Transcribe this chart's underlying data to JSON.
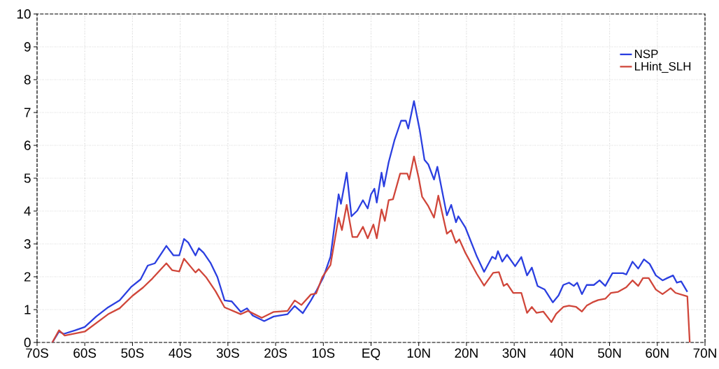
{
  "chart_data": {
    "type": "line",
    "xlim": [
      -70,
      70
    ],
    "xticks": [
      {
        "value": -70,
        "label": "70S"
      },
      {
        "value": -60,
        "label": "60S"
      },
      {
        "value": -50,
        "label": "50S"
      },
      {
        "value": -40,
        "label": "40S"
      },
      {
        "value": -30,
        "label": "30S"
      },
      {
        "value": -20,
        "label": "20S"
      },
      {
        "value": -10,
        "label": "10S"
      },
      {
        "value": 0,
        "label": "EQ"
      },
      {
        "value": 10,
        "label": "10N"
      },
      {
        "value": 20,
        "label": "20N"
      },
      {
        "value": 30,
        "label": "30N"
      },
      {
        "value": 40,
        "label": "40N"
      },
      {
        "value": 50,
        "label": "50N"
      },
      {
        "value": 60,
        "label": "60N"
      },
      {
        "value": 70,
        "label": "70N"
      }
    ],
    "ylim": [
      0,
      10
    ],
    "yticks": [
      0,
      1,
      2,
      3,
      4,
      5,
      6,
      7,
      8,
      9,
      10
    ],
    "grid": true,
    "legend": "top right",
    "marker": "none",
    "line_style": "solid",
    "series": [
      {
        "name": "NSP",
        "color": "#2b3fe0",
        "x": [
          -66.8,
          -65.4,
          -64.4,
          -62,
          -60,
          -57.6,
          -55.1,
          -52.7,
          -50.2,
          -48.3,
          -46.8,
          -45.3,
          -42.9,
          -41.4,
          -40.2,
          -39.2,
          -38.3,
          -36.8,
          -36.1,
          -35.1,
          -33.6,
          -32.2,
          -30.7,
          -29.2,
          -27.3,
          -26.0,
          -24.8,
          -22.4,
          -20.4,
          -17.5,
          -16.0,
          -14.3,
          -12.6,
          -11.5,
          -10,
          -8.5,
          -6.8,
          -6.3,
          -5.1,
          -4.1,
          -2.9,
          -1.7,
          -0.7,
          0,
          0.7,
          1.2,
          2.2,
          2.7,
          3.7,
          4.9,
          6.3,
          7.3,
          7.8,
          9.0,
          10.2,
          11.2,
          12.0,
          13.2,
          13.9,
          15.9,
          16.8,
          17.8,
          18.3,
          19.8,
          22.2,
          23.7,
          25.4,
          26.1,
          26.6,
          27.5,
          28.5,
          30.2,
          31.5,
          32.7,
          33.7,
          34.9,
          36.4,
          38.1,
          39.3,
          40.3,
          41.5,
          42.5,
          43.2,
          44.2,
          45.2,
          46.7,
          47.9,
          49.1,
          50.6,
          52.8,
          53.5,
          54.8,
          56.0,
          57.2,
          58.4,
          59.7,
          61.1,
          62.1,
          63.3,
          64.1,
          65.0,
          66.3
        ],
        "values": [
          0,
          0.33,
          0.26,
          0.37,
          0.47,
          0.79,
          1.07,
          1.28,
          1.7,
          1.92,
          2.34,
          2.41,
          2.94,
          2.65,
          2.65,
          3.15,
          3.04,
          2.65,
          2.87,
          2.73,
          2.41,
          1.99,
          1.28,
          1.25,
          0.93,
          1.04,
          0.82,
          0.65,
          0.79,
          0.86,
          1.11,
          0.89,
          1.28,
          1.56,
          1.98,
          2.61,
          4.51,
          4.22,
          5.17,
          3.84,
          4.01,
          4.33,
          4.08,
          4.51,
          4.68,
          4.26,
          5.17,
          4.75,
          5.49,
          6.15,
          6.75,
          6.75,
          6.51,
          7.35,
          6.47,
          5.56,
          5.42,
          4.96,
          5.35,
          3.87,
          4.19,
          3.66,
          3.84,
          3.49,
          2.61,
          2.15,
          2.61,
          2.54,
          2.78,
          2.46,
          2.67,
          2.32,
          2.6,
          2.04,
          2.28,
          1.72,
          1.61,
          1.22,
          1.43,
          1.75,
          1.82,
          1.72,
          1.82,
          1.47,
          1.75,
          1.75,
          1.89,
          1.72,
          2.11,
          2.11,
          2.07,
          2.46,
          2.25,
          2.53,
          2.39,
          2.04,
          1.89,
          1.96,
          2.04,
          1.82,
          1.86,
          1.54
        ]
      },
      {
        "name": "LHint_SLH",
        "color": "#d0463a",
        "x": [
          -66.8,
          -65.4,
          -64.2,
          -60,
          -55.1,
          -52.7,
          -50,
          -47.8,
          -45.8,
          -42.9,
          -41.7,
          -40.2,
          -39.2,
          -36.8,
          -36.1,
          -34.6,
          -32.6,
          -30.7,
          -27.3,
          -25.8,
          -22.9,
          -20.4,
          -17.5,
          -16.0,
          -14.6,
          -12.6,
          -11.5,
          -10.2,
          -8.5,
          -6.8,
          -6.1,
          -5.1,
          -3.9,
          -2.9,
          -1.7,
          -0.7,
          0.5,
          1.2,
          2.2,
          2.9,
          3.7,
          4.6,
          6.1,
          7.6,
          8.0,
          9.0,
          10.0,
          10.7,
          12.0,
          13.2,
          14.1,
          15.9,
          16.8,
          17.8,
          18.5,
          19.8,
          22.2,
          23.7,
          25.6,
          26.8,
          27.8,
          28.5,
          29.8,
          31.5,
          32.7,
          33.7,
          34.7,
          36.1,
          37.8,
          38.8,
          40.3,
          41.5,
          43.0,
          44.2,
          45.2,
          46.4,
          47.6,
          49.1,
          50.3,
          51.8,
          53.5,
          54.8,
          56.0,
          57.0,
          58.2,
          59.7,
          61.1,
          62.8,
          63.8,
          66.3,
          66.8
        ],
        "values": [
          0,
          0.37,
          0.21,
          0.33,
          0.86,
          1.04,
          1.42,
          1.67,
          1.95,
          2.41,
          2.2,
          2.16,
          2.55,
          2.13,
          2.23,
          1.99,
          1.56,
          1.07,
          0.86,
          0.96,
          0.75,
          0.93,
          0.96,
          1.28,
          1.14,
          1.46,
          1.49,
          1.99,
          2.36,
          3.8,
          3.42,
          4.19,
          3.21,
          3.21,
          3.52,
          3.17,
          3.59,
          3.17,
          4.05,
          3.7,
          4.33,
          4.36,
          5.14,
          5.14,
          4.96,
          5.66,
          5.0,
          4.44,
          4.15,
          3.8,
          4.47,
          3.31,
          3.42,
          3.03,
          3.14,
          2.72,
          2.08,
          1.73,
          2.12,
          2.14,
          1.72,
          1.79,
          1.51,
          1.51,
          0.9,
          1.08,
          0.9,
          0.94,
          0.62,
          0.87,
          1.08,
          1.12,
          1.08,
          0.94,
          1.12,
          1.22,
          1.29,
          1.33,
          1.51,
          1.54,
          1.68,
          1.89,
          1.72,
          1.96,
          1.96,
          1.61,
          1.47,
          1.65,
          1.51,
          1.4,
          0
        ]
      }
    ]
  }
}
